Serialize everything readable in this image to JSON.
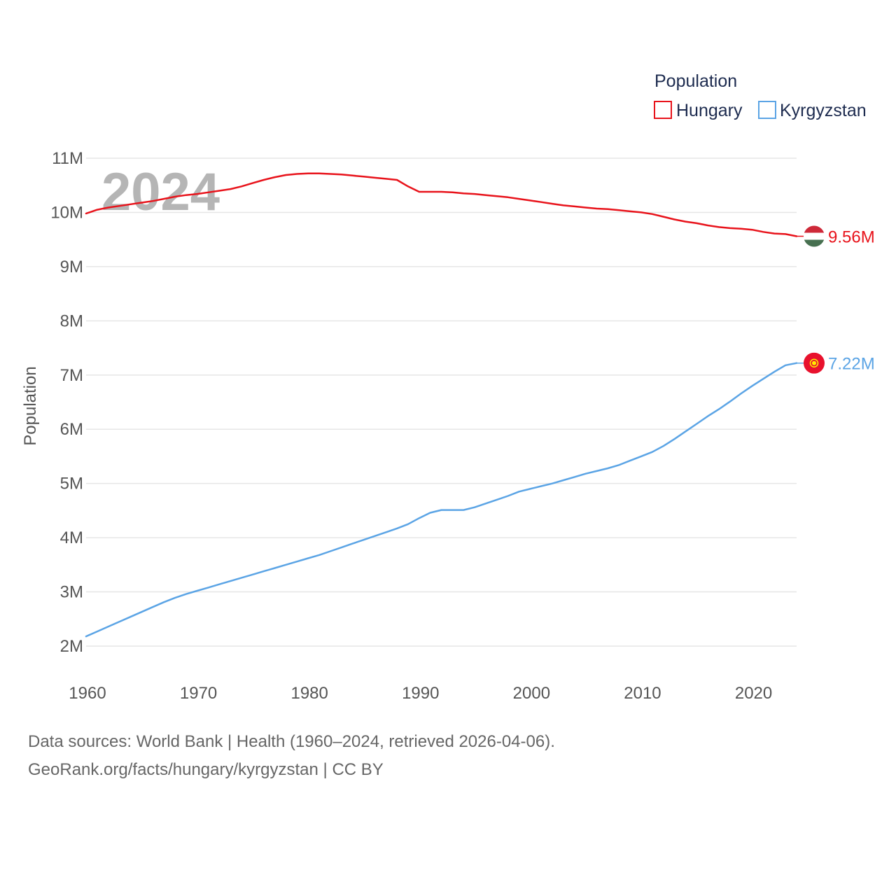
{
  "chart_data": {
    "type": "line",
    "title": "",
    "legend": {
      "title": "Population",
      "placement": "top-right"
    },
    "xlabel": "",
    "ylabel": "Population",
    "watermark_year": "2024",
    "xlim": [
      1960,
      2024
    ],
    "ylim": [
      1700000,
      11300000
    ],
    "x_ticks": [
      1960,
      1970,
      1980,
      1990,
      2000,
      2010,
      2020
    ],
    "y_ticks": [
      {
        "value": 2000000,
        "label": "2M"
      },
      {
        "value": 3000000,
        "label": "3M"
      },
      {
        "value": 4000000,
        "label": "4M"
      },
      {
        "value": 5000000,
        "label": "5M"
      },
      {
        "value": 6000000,
        "label": "6M"
      },
      {
        "value": 7000000,
        "label": "7M"
      },
      {
        "value": 8000000,
        "label": "8M"
      },
      {
        "value": 9000000,
        "label": "9M"
      },
      {
        "value": 10000000,
        "label": "10M"
      },
      {
        "value": 11000000,
        "label": "11M"
      }
    ],
    "grid": true,
    "x": [
      1960,
      1961,
      1962,
      1963,
      1964,
      1965,
      1966,
      1967,
      1968,
      1969,
      1970,
      1971,
      1972,
      1973,
      1974,
      1975,
      1976,
      1977,
      1978,
      1979,
      1980,
      1981,
      1982,
      1983,
      1984,
      1985,
      1986,
      1987,
      1988,
      1989,
      1990,
      1991,
      1992,
      1993,
      1994,
      1995,
      1996,
      1997,
      1998,
      1999,
      2000,
      2001,
      2002,
      2003,
      2004,
      2005,
      2006,
      2007,
      2008,
      2009,
      2010,
      2011,
      2012,
      2013,
      2014,
      2015,
      2016,
      2017,
      2018,
      2019,
      2020,
      2021,
      2022,
      2023,
      2024
    ],
    "series": [
      {
        "name": "Hungary",
        "color": "#e8131b",
        "end_label": "9.56M",
        "flag": "hungary-flag",
        "values": [
          9980000,
          10050000,
          10090000,
          10120000,
          10150000,
          10180000,
          10210000,
          10250000,
          10290000,
          10320000,
          10340000,
          10370000,
          10400000,
          10430000,
          10480000,
          10540000,
          10600000,
          10650000,
          10690000,
          10710000,
          10720000,
          10720000,
          10710000,
          10700000,
          10680000,
          10660000,
          10640000,
          10620000,
          10600000,
          10480000,
          10380000,
          10380000,
          10380000,
          10370000,
          10350000,
          10340000,
          10320000,
          10300000,
          10280000,
          10250000,
          10220000,
          10190000,
          10160000,
          10130000,
          10110000,
          10090000,
          10070000,
          10060000,
          10040000,
          10020000,
          10000000,
          9970000,
          9920000,
          9870000,
          9830000,
          9800000,
          9760000,
          9730000,
          9710000,
          9700000,
          9680000,
          9640000,
          9610000,
          9600000,
          9560000
        ]
      },
      {
        "name": "Kyrgyzstan",
        "color": "#5ba4e5",
        "end_label": "7.22M",
        "flag": "kyrgyzstan-flag",
        "values": [
          2180000,
          2270000,
          2360000,
          2450000,
          2540000,
          2630000,
          2720000,
          2810000,
          2890000,
          2960000,
          3020000,
          3080000,
          3140000,
          3200000,
          3260000,
          3320000,
          3380000,
          3440000,
          3500000,
          3560000,
          3620000,
          3680000,
          3750000,
          3820000,
          3890000,
          3960000,
          4030000,
          4100000,
          4170000,
          4250000,
          4360000,
          4460000,
          4510000,
          4510000,
          4510000,
          4560000,
          4630000,
          4700000,
          4770000,
          4850000,
          4900000,
          4950000,
          5000000,
          5060000,
          5120000,
          5180000,
          5230000,
          5280000,
          5340000,
          5420000,
          5500000,
          5580000,
          5690000,
          5820000,
          5960000,
          6100000,
          6240000,
          6370000,
          6510000,
          6660000,
          6800000,
          6930000,
          7060000,
          7180000,
          7220000
        ]
      }
    ]
  },
  "footer": {
    "line1": "Data sources: World Bank | Health (1960–2024, retrieved 2026-04-06).",
    "line2": "GeoRank.org/facts/hungary/kyrgyzstan | CC BY"
  }
}
